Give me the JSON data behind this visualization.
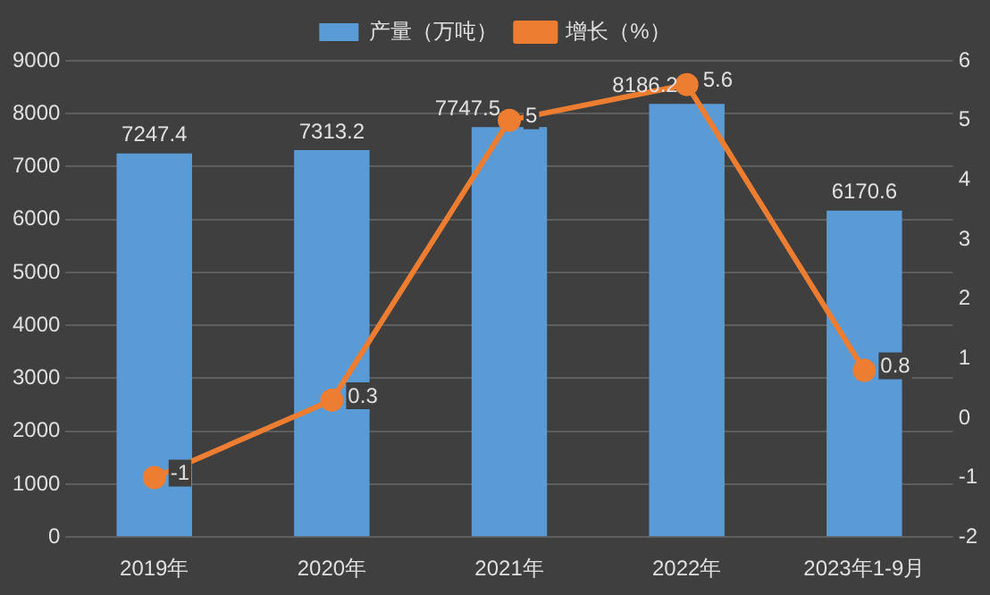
{
  "chart_data": {
    "type": "bar",
    "categories": [
      "2019年",
      "2020年",
      "2021年",
      "2022年",
      "2023年1-9月"
    ],
    "series": [
      {
        "name": "产量（万吨）",
        "color": "#5b9bd5",
        "values": [
          7247.4,
          7313.2,
          7747.5,
          8186.2,
          6170.6
        ]
      },
      {
        "name": "增长（%）",
        "type": "line",
        "axis": "y2",
        "color": "#ed7d31",
        "values": [
          -1,
          0.3,
          5,
          5.6,
          0.8
        ]
      }
    ],
    "ylim": [
      0,
      9000
    ],
    "yticks": [
      0,
      1000,
      2000,
      3000,
      4000,
      5000,
      6000,
      7000,
      8000,
      9000
    ],
    "y2lim": [
      -2,
      6
    ],
    "y2ticks": [
      -2,
      -1,
      0,
      1,
      2,
      3,
      4,
      5,
      6
    ],
    "grid": "y",
    "legend": "top",
    "marker": "circle",
    "data_labels": true
  }
}
